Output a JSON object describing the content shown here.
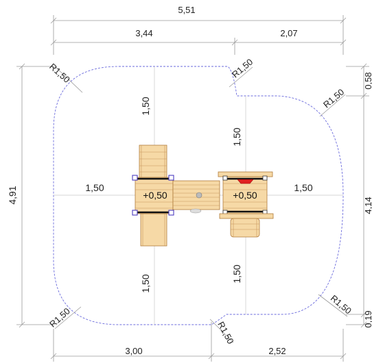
{
  "dimensions": {
    "overall_width": "5,51",
    "top_left_width": "3,44",
    "top_right_width": "2,07",
    "overall_depth": "4,91",
    "right_upper_depth": "0,58",
    "right_middle_depth": "4,14",
    "right_lower_depth": "0,19",
    "bottom_left_width": "3,00",
    "bottom_right_width": "2,52",
    "clearance_left_top": "1,50",
    "clearance_left_bottom": "1,50",
    "clearance_right_top": "1,50",
    "clearance_right_bottom": "1,50",
    "clearance_left_side": "1,50",
    "clearance_right_side": "1,50"
  },
  "radii": {
    "top_left": "R1,50",
    "top_notch": "R1,50",
    "top_right": "R1,50",
    "bottom_left": "R1,50",
    "bottom_notch": "R1,50",
    "bottom_right": "R1,50"
  },
  "platforms": {
    "left_height": "+0,50",
    "right_height": "+0,50"
  },
  "colors": {
    "zone_outline": "#6a6adc",
    "wood": "#f6d9a6",
    "accent_red": "#e02020"
  }
}
